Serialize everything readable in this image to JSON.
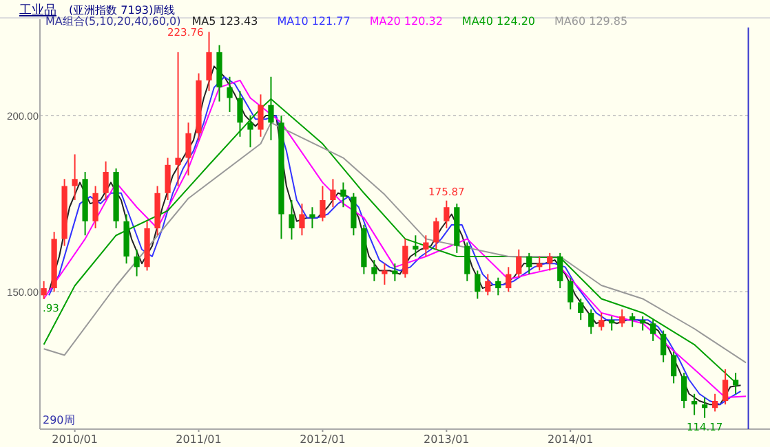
{
  "chart_data": {
    "type": "candlestick",
    "title": "工业品",
    "subtitle": "(亚洲指数 7193)周线",
    "legend_title": "MA组合(5,10,20,40,60,0)",
    "legend": "top left",
    "grid": "y",
    "xlim": [
      "2009-09-20",
      "2015-06-15"
    ],
    "ylim": [
      111,
      225
    ],
    "xticks": [
      {
        "value": "2010-01",
        "label": "2010/01"
      },
      {
        "value": "2011-01",
        "label": "2011/01"
      },
      {
        "value": "2012-01",
        "label": "2012/01"
      },
      {
        "value": "2013-01",
        "label": "2013/01"
      },
      {
        "value": "2014-01",
        "label": "2014/01"
      }
    ],
    "yticks": [
      {
        "value": 150,
        "label": "150.00"
      },
      {
        "value": 200,
        "label": "200.00"
      }
    ],
    "colors": [
      "#ff3030",
      "#ff3030",
      "#ff3030",
      "#ff3030",
      "#009900",
      "#ff3030",
      "#ff3030",
      "#009900",
      "#009900",
      "#009900",
      "#ff3030",
      "#ff3030",
      "#ff3030",
      "#ff3030",
      "#ff3030",
      "#ff3030",
      "#ff3030",
      "#009900",
      "#009900",
      "#009900",
      "#009900",
      "#ff3030",
      "#009900",
      "#009900",
      "#009900",
      "#ff3030",
      "#009900",
      "#ff3030",
      "#ff3030",
      "#009900",
      "#009900",
      "#009900",
      "#009900",
      "#ff3030",
      "#009900",
      "#ff3030",
      "#009900",
      "#ff3030",
      "#ff3030",
      "#ff3030",
      "#009900",
      "#009900",
      "#009900",
      "#ff3030",
      "#009900",
      "#ff3030",
      "#ff3030",
      "#009900",
      "#ff3030",
      "#ff3030",
      "#009900",
      "#009900",
      "#009900",
      "#009900",
      "#ff3030",
      "#009900",
      "#ff3030",
      "#009900",
      "#009900",
      "#009900",
      "#009900",
      "#009900",
      "#009900",
      "#009900",
      "#009900",
      "#ff3030",
      "#ff3030",
      "#009900"
    ],
    "x": [
      "2009-10",
      "2009-11",
      "2009-12",
      "2010-01",
      "2010-02",
      "2010-03",
      "2010-04",
      "2010-05",
      "2010-06",
      "2010-07",
      "2010-08",
      "2010-09",
      "2010-10",
      "2010-11",
      "2010-12",
      "2011-01",
      "2011-02",
      "2011-03",
      "2011-04",
      "2011-05",
      "2011-06",
      "2011-07",
      "2011-08",
      "2011-09",
      "2011-10",
      "2011-11",
      "2011-12",
      "2012-01",
      "2012-02",
      "2012-03",
      "2012-04",
      "2012-05",
      "2012-06",
      "2012-07",
      "2012-08",
      "2012-09",
      "2012-10",
      "2012-11",
      "2012-12",
      "2013-01",
      "2013-02",
      "2013-03",
      "2013-04",
      "2013-05",
      "2013-06",
      "2013-07",
      "2013-08",
      "2013-09",
      "2013-10",
      "2013-11",
      "2013-12",
      "2014-01",
      "2014-02",
      "2014-03",
      "2014-04",
      "2014-05",
      "2014-06",
      "2014-07",
      "2014-08",
      "2014-09",
      "2014-10",
      "2014-11",
      "2014-12",
      "2015-01",
      "2015-02",
      "2015-03",
      "2015-04",
      "2015-05"
    ],
    "ohlc": [
      [
        149,
        153,
        147.93,
        151
      ],
      [
        151,
        167,
        150,
        165
      ],
      [
        165,
        182,
        163,
        180
      ],
      [
        180,
        189,
        176,
        182
      ],
      [
        182,
        184,
        166,
        170
      ],
      [
        170,
        180,
        168,
        178
      ],
      [
        178,
        187,
        176,
        184
      ],
      [
        184,
        185,
        168,
        170
      ],
      [
        170,
        172,
        158,
        160
      ],
      [
        160,
        162,
        154.4,
        157
      ],
      [
        157,
        170,
        156,
        168
      ],
      [
        168,
        180,
        166,
        178
      ],
      [
        178,
        188,
        176,
        186
      ],
      [
        186,
        218,
        180,
        188
      ],
      [
        188,
        198,
        183,
        195
      ],
      [
        195,
        212,
        193,
        210
      ],
      [
        210,
        223.76,
        207,
        218
      ],
      [
        218,
        220,
        204,
        208
      ],
      [
        208,
        211,
        201,
        205
      ],
      [
        205,
        207,
        194,
        198
      ],
      [
        198,
        200,
        191,
        196
      ],
      [
        196,
        206,
        194,
        203
      ],
      [
        203,
        211,
        193,
        198
      ],
      [
        198,
        200,
        165,
        172
      ],
      [
        172,
        176,
        164.8,
        168
      ],
      [
        168,
        175,
        166,
        172
      ],
      [
        172,
        174,
        168,
        171
      ],
      [
        171,
        180,
        170,
        176
      ],
      [
        176,
        182,
        174,
        179
      ],
      [
        179,
        181,
        174,
        177
      ],
      [
        177,
        178,
        166,
        168
      ],
      [
        168,
        169,
        155,
        157
      ],
      [
        157,
        159,
        153,
        155
      ],
      [
        155,
        158,
        152,
        156
      ],
      [
        156,
        158,
        153,
        155
      ],
      [
        155,
        165,
        154,
        163
      ],
      [
        163,
        166,
        160,
        162
      ],
      [
        162,
        166,
        160,
        164
      ],
      [
        164,
        171,
        162,
        170
      ],
      [
        170,
        175.87,
        168,
        174
      ],
      [
        174,
        175,
        161,
        163
      ],
      [
        163,
        164,
        153,
        155
      ],
      [
        155,
        156,
        148,
        150
      ],
      [
        150,
        155,
        149,
        153
      ],
      [
        153,
        154,
        149,
        151
      ],
      [
        151,
        157,
        150,
        155
      ],
      [
        155,
        162,
        154,
        160
      ],
      [
        160,
        161,
        155,
        157
      ],
      [
        157,
        160,
        156,
        158
      ],
      [
        158,
        161,
        156,
        160
      ],
      [
        160,
        161,
        151,
        153
      ],
      [
        153,
        154,
        145,
        147
      ],
      [
        147,
        148,
        142,
        144
      ],
      [
        144,
        145,
        138,
        140
      ],
      [
        140,
        144,
        139,
        142
      ],
      [
        142,
        143,
        139,
        141
      ],
      [
        141,
        145,
        140,
        143
      ],
      [
        143,
        144,
        140,
        142
      ],
      [
        142,
        143,
        139,
        141
      ],
      [
        141,
        142,
        136,
        138
      ],
      [
        138,
        139,
        130,
        132
      ],
      [
        132,
        133,
        124,
        126
      ],
      [
        126,
        127,
        117,
        119
      ],
      [
        119,
        121,
        115,
        118
      ],
      [
        118,
        120,
        114.17,
        117
      ],
      [
        117,
        121,
        116,
        119
      ],
      [
        119,
        128,
        118,
        125
      ],
      [
        125,
        127,
        121,
        123.4
      ]
    ],
    "series": [
      {
        "type": "line",
        "name": "MA5 123.43",
        "color": "#222222",
        "x": [
          "2009-10-16",
          "2009-11-16",
          "2009-12-16",
          "2010-01-16",
          "2010-02-16",
          "2010-03-16",
          "2010-04-16",
          "2010-05-16",
          "2010-06-16",
          "2010-07-16",
          "2010-08-16",
          "2010-09-16",
          "2010-10-16",
          "2010-11-16",
          "2010-12-16",
          "2011-01-16",
          "2011-02-16",
          "2011-03-16",
          "2011-04-16",
          "2011-05-16",
          "2011-06-16",
          "2011-07-16",
          "2011-08-16",
          "2011-09-16",
          "2011-10-16",
          "2011-11-16",
          "2011-12-16",
          "2012-01-16",
          "2012-02-16",
          "2012-03-16",
          "2012-04-16",
          "2012-05-16",
          "2012-06-16",
          "2012-07-16",
          "2012-08-16",
          "2012-09-16",
          "2012-10-16",
          "2012-11-16",
          "2012-12-16",
          "2013-01-16",
          "2013-02-16",
          "2013-03-16",
          "2013-04-16",
          "2013-05-16",
          "2013-06-16",
          "2013-07-16",
          "2013-08-16",
          "2013-09-16",
          "2013-10-16",
          "2013-11-16",
          "2013-12-16",
          "2014-01-16",
          "2014-02-16",
          "2014-03-16",
          "2014-04-16",
          "2014-05-16",
          "2014-06-16",
          "2014-07-16",
          "2014-08-16",
          "2014-09-16",
          "2014-10-16",
          "2014-11-16",
          "2014-12-16",
          "2015-01-16",
          "2015-02-16",
          "2015-03-16",
          "2015-04-16",
          "2015-05-16"
        ],
        "values": [
          150,
          160,
          174,
          181,
          175,
          176,
          181,
          176,
          165,
          158,
          163,
          174,
          183,
          188,
          193,
          205,
          214,
          211,
          206,
          200,
          197,
          200,
          200,
          180,
          170,
          171,
          171,
          174,
          178,
          177,
          171,
          160,
          156,
          156,
          155,
          160,
          162,
          163,
          168,
          172,
          166,
          157,
          151,
          152,
          152,
          154,
          158,
          158,
          158,
          159,
          155,
          149,
          145,
          141,
          142,
          141,
          142,
          142,
          141,
          139,
          134,
          128,
          121,
          119,
          118,
          118,
          123,
          123.43
        ]
      },
      {
        "type": "line",
        "name": "MA10 121.77",
        "color": "#3333ff",
        "x": [
          "2009-10-16",
          "2009-11-16",
          "2009-12-16",
          "2010-01-16",
          "2010-02-16",
          "2010-03-16",
          "2010-04-16",
          "2010-05-16",
          "2010-06-16",
          "2010-07-16",
          "2010-08-16",
          "2010-09-16",
          "2010-10-16",
          "2010-11-16",
          "2010-12-16",
          "2011-01-16",
          "2011-02-16",
          "2011-03-16",
          "2011-04-16",
          "2011-05-16",
          "2011-06-16",
          "2011-07-16",
          "2011-08-16",
          "2011-09-16",
          "2011-10-16",
          "2011-11-16",
          "2011-12-16",
          "2012-01-16",
          "2012-02-16",
          "2012-03-16",
          "2012-04-16",
          "2012-05-16",
          "2012-06-16",
          "2012-07-16",
          "2012-08-16",
          "2012-09-16",
          "2012-10-16",
          "2012-11-16",
          "2012-12-16",
          "2013-01-16",
          "2013-02-16",
          "2013-03-16",
          "2013-04-16",
          "2013-05-16",
          "2013-06-16",
          "2013-07-16",
          "2013-08-16",
          "2013-09-16",
          "2013-10-16",
          "2013-11-16",
          "2013-12-16",
          "2014-01-16",
          "2014-02-16",
          "2014-03-16",
          "2014-04-16",
          "2014-05-16",
          "2014-06-16",
          "2014-07-16",
          "2014-08-16",
          "2014-09-16",
          "2014-10-16",
          "2014-11-16",
          "2014-12-16",
          "2015-01-16",
          "2015-02-16",
          "2015-03-16",
          "2015-04-16",
          "2015-05-16"
        ],
        "values": [
          149,
          155,
          165,
          175,
          177,
          175,
          178,
          178,
          170,
          162,
          160,
          168,
          178,
          185,
          190,
          198,
          208,
          211,
          209,
          204,
          199,
          199,
          200,
          190,
          176,
          171,
          171,
          172,
          175,
          177,
          174,
          166,
          159,
          157,
          156,
          157,
          160,
          162,
          165,
          169,
          169,
          162,
          155,
          152,
          152,
          153,
          155,
          157,
          158,
          158,
          157,
          152,
          148,
          144,
          142,
          142,
          142,
          142,
          142,
          140,
          136,
          131,
          125,
          121,
          119,
          118,
          120,
          121.77
        ]
      },
      {
        "type": "line",
        "name": "MA20 120.32",
        "color": "#ff00ff",
        "x": [
          "2009-10",
          "2010-02",
          "2010-05",
          "2010-07",
          "2010-09",
          "2010-12",
          "2011-03",
          "2011-05",
          "2011-06",
          "2011-09",
          "2012-01",
          "2012-03",
          "2012-05",
          "2012-08",
          "2012-11",
          "2013-03",
          "2013-07",
          "2013-09",
          "2013-12",
          "2014-04",
          "2014-08",
          "2015-01",
          "2015-04",
          "2015-06"
        ],
        "values": [
          148,
          165,
          181,
          174,
          168,
          185,
          208,
          210,
          205,
          198,
          181,
          175,
          171,
          157,
          160,
          165,
          153.5,
          155,
          157,
          144,
          141,
          128,
          120,
          120.32
        ]
      },
      {
        "type": "line",
        "name": "MA40 124.20",
        "color": "#00a000",
        "x": [
          "2009-10",
          "2010-01",
          "2010-05",
          "2010-10",
          "2011-02",
          "2011-07",
          "2011-08",
          "2012-01",
          "2012-05",
          "2012-09",
          "2013-02",
          "2013-07",
          "2013-12",
          "2014-04",
          "2014-08",
          "2015-01",
          "2015-05"
        ],
        "values": [
          135,
          151.7,
          166,
          173,
          186,
          202,
          204.7,
          192,
          178,
          165,
          160,
          160,
          159.7,
          148,
          144,
          135,
          124.2
        ]
      },
      {
        "type": "line",
        "name": "MA60 129.85",
        "color": "#999999",
        "x": [
          "2009-10",
          "2009-12",
          "2010-05",
          "2010-12",
          "2011-07",
          "2011-08",
          "2012-03",
          "2012-07",
          "2012-11",
          "2013-07",
          "2013-12",
          "2014-04",
          "2014-08",
          "2015-01",
          "2015-06"
        ],
        "values": [
          133.8,
          132,
          151.7,
          176.5,
          192,
          198,
          188,
          177.6,
          165,
          160,
          160,
          151.8,
          148,
          139.5,
          129.85
        ]
      }
    ],
    "ref_lines": [
      {
        "axis": "x",
        "value": "2015-06-08",
        "color": "#3333cc"
      }
    ],
    "annotations": [
      {
        "text": "223.76",
        "x": "2011-02",
        "y": 223.76
      },
      {
        "text": "175.87",
        "x": "2013-01",
        "y": 175.87
      },
      {
        "text": "114.17",
        "x": "2015-02",
        "y": 114.17
      },
      {
        "text": ".93",
        "x": "2009-10",
        "y": 147.93
      },
      "290周"
    ]
  }
}
